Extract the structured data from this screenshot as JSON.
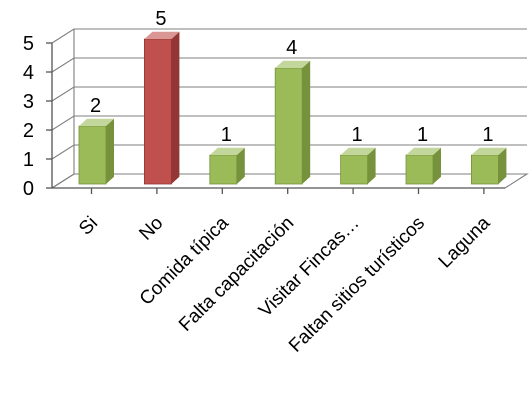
{
  "chart_data": {
    "type": "bar",
    "title": "",
    "xlabel": "",
    "ylabel": "",
    "ylim": [
      0,
      5
    ],
    "yticks": [
      0,
      1,
      2,
      3,
      4,
      5
    ],
    "grid": true,
    "legend": "none",
    "style": "3d-column",
    "categories": [
      "Si",
      "No",
      "Comida típica",
      "Falta capacitación",
      "Visitar Fincas…",
      "Faltan sitios turísticos",
      "Laguna"
    ],
    "values": [
      2,
      5,
      1,
      4,
      1,
      1,
      1
    ],
    "data_labels": [
      "2",
      "5",
      "1",
      "4",
      "1",
      "1",
      "1"
    ],
    "colors": [
      "#9bbb59",
      "#c0504d",
      "#9bbb59",
      "#9bbb59",
      "#9bbb59",
      "#9bbb59",
      "#9bbb59"
    ],
    "palette": {
      "green": {
        "front": "#9bbb59",
        "side": "#76923c",
        "top": "#c3d69b"
      },
      "red": {
        "front": "#c0504d",
        "side": "#943634",
        "top": "#d99694"
      }
    }
  }
}
